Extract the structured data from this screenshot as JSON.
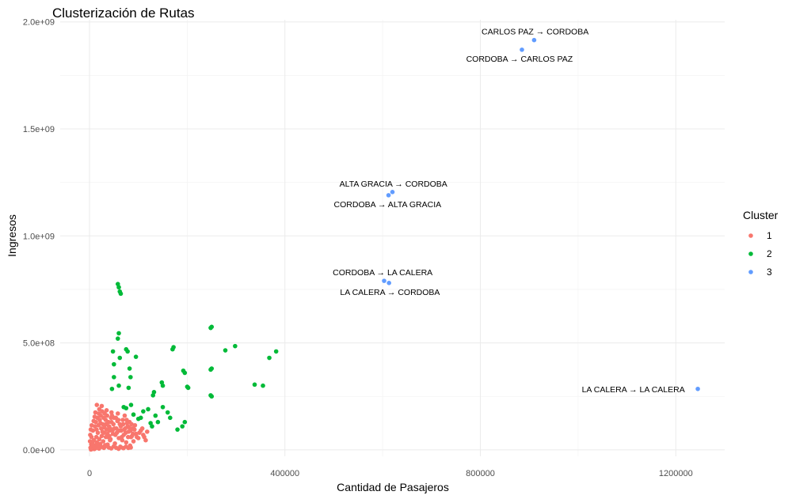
{
  "chart_data": {
    "type": "scatter",
    "title": "Clusterización de Rutas",
    "xlabel": "Cantidad de Pasajeros",
    "ylabel": "Ingresos",
    "xlim": [
      -60000,
      1300000
    ],
    "ylim": [
      -30000000,
      2010000000
    ],
    "x_ticks": [
      {
        "value": 0,
        "label": "0"
      },
      {
        "value": 400000,
        "label": "400000"
      },
      {
        "value": 800000,
        "label": "800000"
      },
      {
        "value": 1200000,
        "label": "1200000"
      }
    ],
    "y_ticks": [
      {
        "value": 0,
        "label": "0.0e+00"
      },
      {
        "value": 500000000,
        "label": "5.0e+08"
      },
      {
        "value": 1000000000,
        "label": "1.0e+09"
      },
      {
        "value": 1500000000,
        "label": "1.5e+09"
      },
      {
        "value": 2000000000,
        "label": "2.0e+09"
      }
    ],
    "grid": true,
    "legend": {
      "title": "Cluster",
      "position": "right"
    },
    "series": [
      {
        "name": "1",
        "color": "#F8766D",
        "points": [
          [
            3000,
            2000000
          ],
          [
            5000,
            8000000
          ],
          [
            8000,
            15000000
          ],
          [
            10000,
            4000000
          ],
          [
            12000,
            20000000
          ],
          [
            15000,
            35000000
          ],
          [
            18000,
            12000000
          ],
          [
            20000,
            50000000
          ],
          [
            22000,
            28000000
          ],
          [
            25000,
            65000000
          ],
          [
            28000,
            40000000
          ],
          [
            30000,
            80000000
          ],
          [
            32000,
            22000000
          ],
          [
            35000,
            95000000
          ],
          [
            38000,
            60000000
          ],
          [
            40000,
            110000000
          ],
          [
            42000,
            45000000
          ],
          [
            45000,
            130000000
          ],
          [
            48000,
            75000000
          ],
          [
            50000,
            150000000
          ],
          [
            52000,
            30000000
          ],
          [
            55000,
            100000000
          ],
          [
            58000,
            170000000
          ],
          [
            60000,
            55000000
          ],
          [
            62000,
            120000000
          ],
          [
            65000,
            90000000
          ],
          [
            68000,
            140000000
          ],
          [
            70000,
            70000000
          ],
          [
            72000,
            160000000
          ],
          [
            75000,
            35000000
          ],
          [
            78000,
            110000000
          ],
          [
            80000,
            85000000
          ],
          [
            82000,
            130000000
          ],
          [
            85000,
            60000000
          ],
          [
            88000,
            100000000
          ],
          [
            90000,
            40000000
          ],
          [
            95000,
            75000000
          ],
          [
            100000,
            55000000
          ],
          [
            105000,
            90000000
          ],
          [
            110000,
            70000000
          ],
          [
            115000,
            45000000
          ],
          [
            20000,
            190000000
          ],
          [
            15000,
            210000000
          ],
          [
            25000,
            205000000
          ],
          [
            35000,
            185000000
          ],
          [
            45000,
            175000000
          ],
          [
            6000,
            30000000
          ],
          [
            9000,
            45000000
          ],
          [
            14000,
            60000000
          ],
          [
            17000,
            80000000
          ],
          [
            24000,
            100000000
          ],
          [
            27000,
            120000000
          ],
          [
            33000,
            140000000
          ],
          [
            37000,
            25000000
          ],
          [
            43000,
            50000000
          ],
          [
            47000,
            90000000
          ],
          [
            53000,
            70000000
          ],
          [
            57000,
            135000000
          ],
          [
            63000,
            15000000
          ],
          [
            67000,
            45000000
          ],
          [
            73000,
            100000000
          ],
          [
            77000,
            125000000
          ],
          [
            83000,
            20000000
          ],
          [
            87000,
            65000000
          ],
          [
            93000,
            115000000
          ],
          [
            4000,
            60000000
          ],
          [
            7000,
            90000000
          ],
          [
            11000,
            110000000
          ],
          [
            13000,
            130000000
          ],
          [
            16000,
            150000000
          ],
          [
            19000,
            170000000
          ],
          [
            21000,
            140000000
          ],
          [
            23000,
            160000000
          ],
          [
            26000,
            180000000
          ],
          [
            29000,
            150000000
          ],
          [
            31000,
            170000000
          ],
          [
            34000,
            120000000
          ],
          [
            36000,
            160000000
          ],
          [
            39000,
            130000000
          ],
          [
            41000,
            90000000
          ],
          [
            44000,
            150000000
          ],
          [
            46000,
            160000000
          ],
          [
            49000,
            120000000
          ],
          [
            51000,
            100000000
          ],
          [
            54000,
            150000000
          ],
          [
            56000,
            80000000
          ],
          [
            59000,
            140000000
          ],
          [
            61000,
            90000000
          ],
          [
            64000,
            110000000
          ],
          [
            66000,
            60000000
          ],
          [
            69000,
            120000000
          ],
          [
            71000,
            95000000
          ],
          [
            74000,
            80000000
          ],
          [
            76000,
            140000000
          ],
          [
            79000,
            60000000
          ],
          [
            81000,
            105000000
          ],
          [
            84000,
            90000000
          ],
          [
            86000,
            120000000
          ],
          [
            89000,
            75000000
          ],
          [
            92000,
            95000000
          ],
          [
            97000,
            60000000
          ],
          [
            102000,
            80000000
          ],
          [
            108000,
            100000000
          ],
          [
            112000,
            60000000
          ],
          [
            118000,
            85000000
          ],
          [
            2000,
            10000000
          ],
          [
            3500,
            25000000
          ],
          [
            6500,
            5000000
          ],
          [
            9500,
            18000000
          ],
          [
            12500,
            8000000
          ],
          [
            16500,
            22000000
          ],
          [
            19500,
            6000000
          ],
          [
            24500,
            14000000
          ],
          [
            29500,
            9000000
          ],
          [
            34500,
            18000000
          ],
          [
            39500,
            11000000
          ],
          [
            44500,
            7000000
          ],
          [
            49500,
            16000000
          ],
          [
            54500,
            10000000
          ],
          [
            59500,
            5000000
          ],
          [
            64500,
            12000000
          ],
          [
            69500,
            8000000
          ],
          [
            74500,
            15000000
          ],
          [
            79500,
            9000000
          ],
          [
            84500,
            11000000
          ],
          [
            1000,
            40000000
          ],
          [
            1500,
            70000000
          ],
          [
            2500,
            95000000
          ],
          [
            4500,
            115000000
          ],
          [
            8500,
            135000000
          ],
          [
            10500,
            155000000
          ],
          [
            12000,
            175000000
          ],
          [
            14500,
            95000000
          ],
          [
            18500,
            115000000
          ],
          [
            22500,
            125000000
          ],
          [
            26500,
            85000000
          ],
          [
            30500,
            105000000
          ],
          [
            33500,
            60000000
          ],
          [
            36500,
            75000000
          ],
          [
            40500,
            65000000
          ],
          [
            42500,
            100000000
          ]
        ]
      },
      {
        "name": "2",
        "color": "#00BA38",
        "points": [
          [
            58000,
            775000000
          ],
          [
            60000,
            760000000
          ],
          [
            62000,
            740000000
          ],
          [
            64000,
            730000000
          ],
          [
            60000,
            545000000
          ],
          [
            58000,
            520000000
          ],
          [
            75000,
            470000000
          ],
          [
            78000,
            460000000
          ],
          [
            48000,
            460000000
          ],
          [
            95000,
            435000000
          ],
          [
            62000,
            430000000
          ],
          [
            50000,
            400000000
          ],
          [
            82000,
            380000000
          ],
          [
            50000,
            340000000
          ],
          [
            84000,
            340000000
          ],
          [
            46000,
            285000000
          ],
          [
            60000,
            300000000
          ],
          [
            80000,
            290000000
          ],
          [
            148000,
            315000000
          ],
          [
            150000,
            300000000
          ],
          [
            132000,
            270000000
          ],
          [
            130000,
            255000000
          ],
          [
            170000,
            470000000
          ],
          [
            172000,
            480000000
          ],
          [
            192000,
            370000000
          ],
          [
            195000,
            360000000
          ],
          [
            200000,
            295000000
          ],
          [
            202000,
            290000000
          ],
          [
            248000,
            570000000
          ],
          [
            250000,
            575000000
          ],
          [
            248000,
            375000000
          ],
          [
            250000,
            380000000
          ],
          [
            248000,
            255000000
          ],
          [
            250000,
            250000000
          ],
          [
            278000,
            465000000
          ],
          [
            298000,
            485000000
          ],
          [
            338000,
            305000000
          ],
          [
            355000,
            300000000
          ],
          [
            368000,
            430000000
          ],
          [
            382000,
            460000000
          ],
          [
            150000,
            200000000
          ],
          [
            120000,
            190000000
          ],
          [
            110000,
            180000000
          ],
          [
            160000,
            175000000
          ],
          [
            165000,
            150000000
          ],
          [
            135000,
            160000000
          ],
          [
            140000,
            130000000
          ],
          [
            125000,
            125000000
          ],
          [
            100000,
            145000000
          ],
          [
            105000,
            150000000
          ],
          [
            128000,
            110000000
          ],
          [
            190000,
            110000000
          ],
          [
            195000,
            130000000
          ],
          [
            180000,
            95000000
          ],
          [
            85000,
            210000000
          ],
          [
            70000,
            200000000
          ],
          [
            75000,
            195000000
          ],
          [
            90000,
            165000000
          ]
        ]
      },
      {
        "name": "3",
        "color": "#619CFF",
        "points": [
          [
            910000,
            1915000000
          ],
          [
            885000,
            1870000000
          ],
          [
            620000,
            1205000000
          ],
          [
            612000,
            1190000000
          ],
          [
            603000,
            790000000
          ],
          [
            613000,
            780000000
          ],
          [
            1245000,
            285000000
          ]
        ]
      }
    ],
    "annotations": [
      {
        "text": "CARLOS PAZ → CORDOBA",
        "x": 912000,
        "y": 1915000000,
        "anchor": "above"
      },
      {
        "text": "CORDOBA → CARLOS PAZ",
        "x": 880000,
        "y": 1870000000,
        "anchor": "below"
      },
      {
        "text": "ALTA GRACIA → CORDOBA",
        "x": 622000,
        "y": 1205000000,
        "anchor": "above"
      },
      {
        "text": "CORDOBA → ALTA GRACIA",
        "x": 610000,
        "y": 1190000000,
        "anchor": "below"
      },
      {
        "text": "CORDOBA → LA CALERA",
        "x": 600000,
        "y": 790000000,
        "anchor": "above"
      },
      {
        "text": "LA CALERA → CORDOBA",
        "x": 615000,
        "y": 780000000,
        "anchor": "below"
      },
      {
        "text": "LA CALERA → LA CALERA",
        "x": 1225000,
        "y": 285000000,
        "anchor": "left"
      }
    ]
  }
}
